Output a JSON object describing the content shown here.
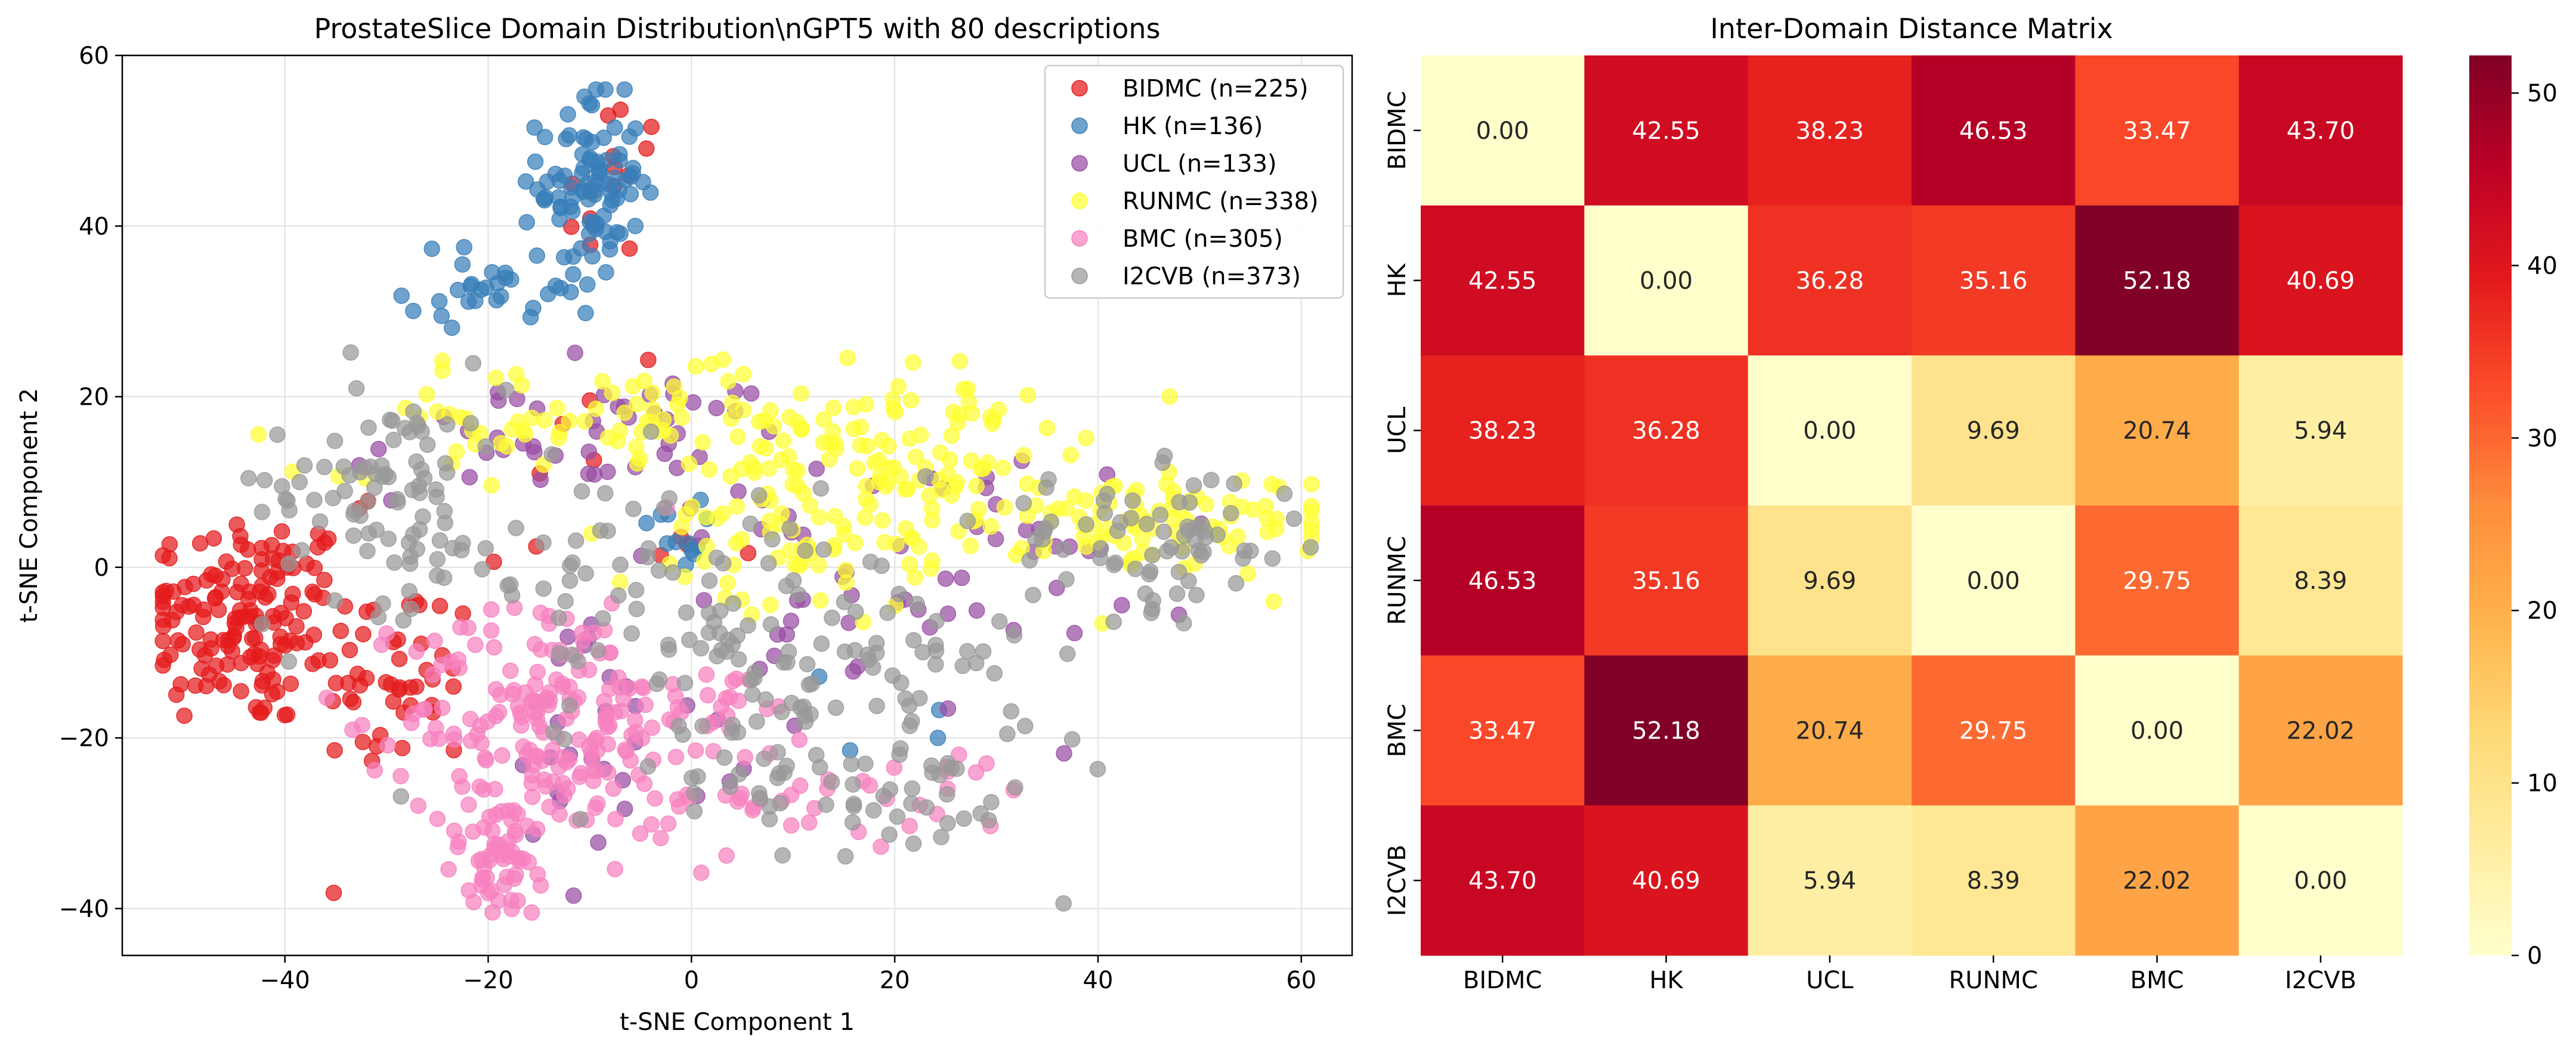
{
  "chart_data": [
    {
      "type": "scatter",
      "title": "ProstateSlice Domain Distribution\\nGPT5 with 80 descriptions",
      "xlabel": "t-SNE Component 1",
      "ylabel": "t-SNE Component 2",
      "xlim": [
        -56,
        65
      ],
      "ylim": [
        -45.5,
        60
      ],
      "xticks": [
        -40,
        -20,
        0,
        20,
        40,
        60
      ],
      "yticks": [
        -40,
        -20,
        0,
        20,
        40,
        60
      ],
      "grid": true,
      "legend_position": "top-right",
      "series": [
        {
          "name": "BIDMC (n=225)",
          "color": "#e41a1c",
          "n": 225,
          "clusters": [
            {
              "cx": -44,
              "cy": -6,
              "sx": 5.5,
              "sy": 6.5,
              "n": 150
            },
            {
              "cx": -29,
              "cy": -13,
              "sx": 4,
              "sy": 6,
              "n": 45
            },
            {
              "cx": -8,
              "cy": 43,
              "sx": 2.5,
              "sy": 7,
              "n": 15
            },
            {
              "cx": -15,
              "cy": 5,
              "sx": 12,
              "sy": 8,
              "n": 15
            }
          ]
        },
        {
          "name": "HK (n=136)",
          "color": "#377eb8",
          "n": 136,
          "clusters": [
            {
              "cx": -10,
              "cy": 45,
              "sx": 2.5,
              "sy": 5.5,
              "n": 90
            },
            {
              "cx": -18,
              "cy": 33,
              "sx": 5,
              "sy": 2.5,
              "n": 30
            },
            {
              "cx": -2,
              "cy": 4,
              "sx": 1.5,
              "sy": 2,
              "n": 12
            },
            {
              "cx": 20,
              "cy": -20,
              "sx": 5,
              "sy": 5,
              "n": 4
            }
          ]
        },
        {
          "name": "UCL (n=133)",
          "color": "#984ea3",
          "n": 133,
          "clusters": [
            {
              "cx": -10,
              "cy": 15,
              "sx": 12,
              "sy": 4,
              "n": 50
            },
            {
              "cx": 15,
              "cy": -5,
              "sx": 12,
              "sy": 8,
              "n": 45
            },
            {
              "cx": 35,
              "cy": 0,
              "sx": 15,
              "sy": 5,
              "n": 18
            },
            {
              "cx": -10,
              "cy": -25,
              "sx": 6,
              "sy": 8,
              "n": 20
            }
          ]
        },
        {
          "name": "RUNMC (n=338)",
          "color": "#ffff33",
          "n": 338,
          "clusters": [
            {
              "cx": 20,
              "cy": 12,
              "sx": 9,
              "sy": 6,
              "n": 130
            },
            {
              "cx": 45,
              "cy": 5,
              "sx": 9,
              "sy": 3,
              "n": 90
            },
            {
              "cx": -10,
              "cy": 17,
              "sx": 14,
              "sy": 3,
              "n": 80
            },
            {
              "cx": 8,
              "cy": 0,
              "sx": 7,
              "sy": 4,
              "n": 38
            }
          ]
        },
        {
          "name": "BMC (n=305)",
          "color": "#f781bf",
          "n": 305,
          "clusters": [
            {
              "cx": -14,
              "cy": -17,
              "sx": 7,
              "sy": 7,
              "n": 180
            },
            {
              "cx": -19,
              "cy": -34,
              "sx": 3,
              "sy": 4,
              "n": 60
            },
            {
              "cx": 4,
              "cy": -23,
              "sx": 5,
              "sy": 6,
              "n": 45
            },
            {
              "cx": 22,
              "cy": -27,
              "sx": 6,
              "sy": 3,
              "n": 20
            }
          ]
        },
        {
          "name": "I2CVB (n=373)",
          "color": "#999999",
          "n": 373,
          "clusters": [
            {
              "cx": -30,
              "cy": 10,
              "sx": 6,
              "sy": 7,
              "n": 90
            },
            {
              "cx": 10,
              "cy": -10,
              "sx": 12,
              "sy": 8,
              "n": 130
            },
            {
              "cx": 45,
              "cy": 3,
              "sx": 8,
              "sy": 4,
              "n": 70
            },
            {
              "cx": 20,
              "cy": -25,
              "sx": 8,
              "sy": 5,
              "n": 50
            },
            {
              "cx": -10,
              "cy": 0,
              "sx": 10,
              "sy": 6,
              "n": 33
            }
          ]
        }
      ]
    },
    {
      "type": "heatmap",
      "title": "Inter-Domain Distance Matrix",
      "rows": [
        "BIDMC",
        "HK",
        "UCL",
        "RUNMC",
        "BMC",
        "I2CVB"
      ],
      "cols": [
        "BIDMC",
        "HK",
        "UCL",
        "RUNMC",
        "BMC",
        "I2CVB"
      ],
      "values": [
        [
          0.0,
          42.55,
          38.23,
          46.53,
          33.47,
          43.7
        ],
        [
          42.55,
          0.0,
          36.28,
          35.16,
          52.18,
          40.69
        ],
        [
          38.23,
          36.28,
          0.0,
          9.69,
          20.74,
          5.94
        ],
        [
          46.53,
          35.16,
          9.69,
          0.0,
          29.75,
          8.39
        ],
        [
          33.47,
          52.18,
          20.74,
          29.75,
          0.0,
          22.02
        ],
        [
          43.7,
          40.69,
          5.94,
          8.39,
          22.02,
          0.0
        ]
      ],
      "colormap": "YlOrRd",
      "vmin": 0,
      "vmax": 52.18,
      "colorbar_ticks": [
        0,
        10,
        20,
        30,
        40,
        50
      ]
    }
  ]
}
